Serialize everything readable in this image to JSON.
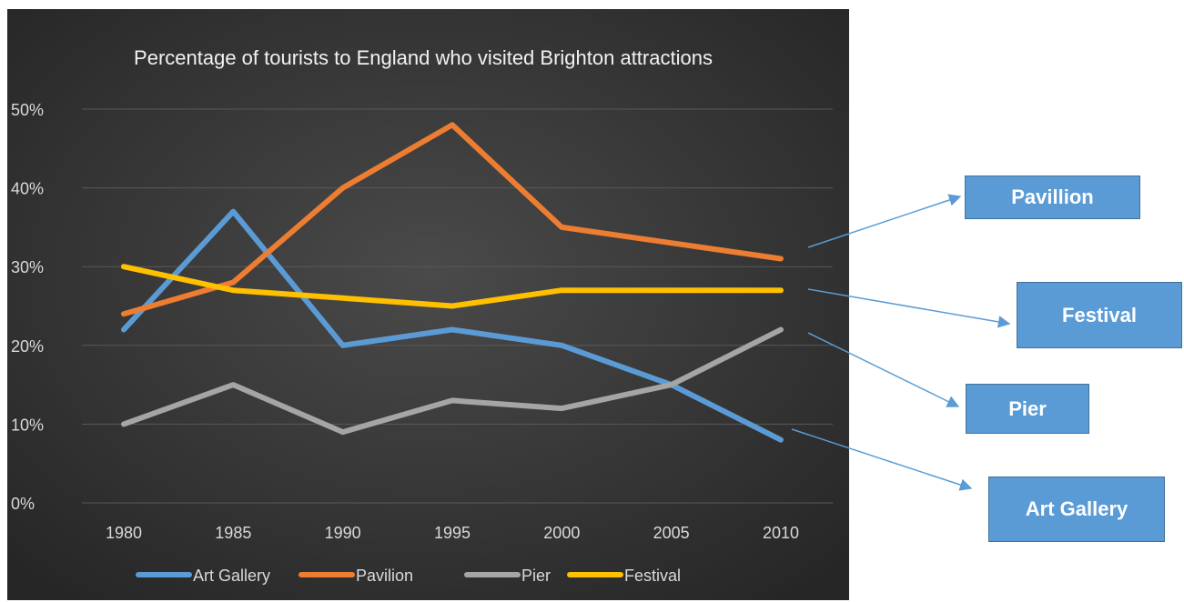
{
  "chart_data": {
    "type": "line",
    "title": "Percentage of tourists to England who visited Brighton attractions",
    "xlabel": "",
    "ylabel": "",
    "categories": [
      "1980",
      "1985",
      "1990",
      "1995",
      "2000",
      "2005",
      "2010"
    ],
    "ylim": [
      0,
      50
    ],
    "yticks": [
      "0%",
      "10%",
      "20%",
      "30%",
      "40%",
      "50%"
    ],
    "grid": true,
    "legend_position": "bottom",
    "background": "#3a3a3a",
    "series": [
      {
        "name": "Art Gallery",
        "color": "#5b9bd5",
        "values": [
          22,
          37,
          20,
          22,
          20,
          15,
          8
        ]
      },
      {
        "name": "Pavilion",
        "color": "#ed7d31",
        "values": [
          24,
          28,
          40,
          48,
          35,
          33,
          31
        ]
      },
      {
        "name": "Pier",
        "color": "#a5a5a5",
        "values": [
          10,
          15,
          9,
          13,
          12,
          15,
          22
        ]
      },
      {
        "name": "Festival",
        "color": "#ffc000",
        "values": [
          30,
          27,
          26,
          25,
          27,
          27,
          27
        ]
      }
    ]
  },
  "callouts": [
    {
      "label": "Pavillion"
    },
    {
      "label": "Festival"
    },
    {
      "label": "Pier"
    },
    {
      "label": "Art Gallery"
    }
  ],
  "colors": {
    "callout_fill": "#5b9bd5",
    "callout_border": "#41719c",
    "arrow": "#5b9bd5"
  }
}
